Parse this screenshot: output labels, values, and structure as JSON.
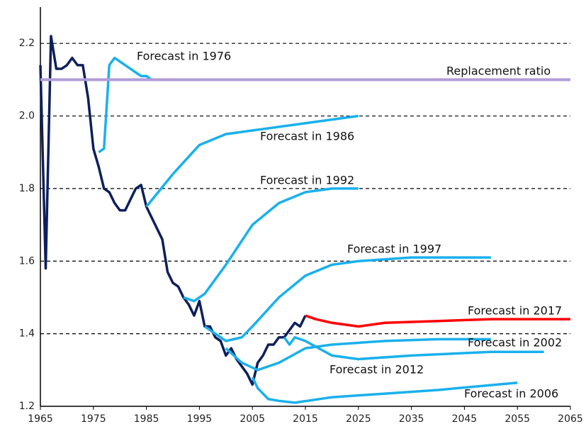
{
  "chart_data": {
    "type": "line",
    "xlim": [
      1965,
      2065
    ],
    "xticks": [
      1965,
      1975,
      1985,
      1995,
      2005,
      2015,
      2025,
      2035,
      2045,
      2055,
      2065
    ],
    "ylim": [
      1.2,
      2.3
    ],
    "yticks": [
      1.2,
      1.4,
      1.6,
      1.8,
      {
        "value": 2,
        "label": "2.0"
      },
      2.2
    ],
    "grid": true,
    "series": [
      {
        "color": "#0e1f5b",
        "x": [
          1965,
          1966,
          1967,
          1968,
          1969,
          1970,
          1971,
          1972,
          1973,
          1974,
          1975,
          1976,
          1977,
          1978,
          1979,
          1980,
          1981,
          1982,
          1983,
          1984,
          1985,
          1986,
          1987,
          1988,
          1989,
          1990,
          1991,
          1992,
          1993,
          1994,
          1995,
          1996,
          1997,
          1998,
          1999,
          2000,
          2001,
          2002,
          2003,
          2004,
          2005,
          2006,
          2007,
          2008,
          2009,
          2010,
          2011,
          2012,
          2013,
          2014,
          2015
        ],
        "values": [
          2.14,
          1.58,
          2.22,
          2.13,
          2.13,
          2.14,
          2.16,
          2.14,
          2.14,
          2.05,
          1.91,
          1.86,
          1.8,
          1.79,
          1.76,
          1.74,
          1.74,
          1.77,
          1.8,
          1.81,
          1.75,
          1.72,
          1.69,
          1.66,
          1.57,
          1.54,
          1.53,
          1.5,
          1.48,
          1.45,
          1.49,
          1.42,
          1.42,
          1.39,
          1.38,
          1.34,
          1.36,
          1.33,
          1.31,
          1.29,
          1.26,
          1.32,
          1.34,
          1.37,
          1.37,
          1.39,
          1.39,
          1.41,
          1.43,
          1.42,
          1.45
        ]
      },
      {
        "name": "Forecast in 1976",
        "color": "#1ab0ec",
        "x": [
          1976,
          1977,
          1978,
          1979,
          1980,
          1981,
          1982,
          1983,
          1984,
          1985,
          1986,
          1987
        ],
        "values": [
          1.9,
          1.91,
          2.14,
          2.16,
          2.15,
          2.14,
          2.13,
          2.12,
          2.11,
          2.11,
          2.1,
          2.1
        ]
      },
      {
        "color": "#4472c4",
        "x": [
          1987,
          1995
        ],
        "values": [
          2.1,
          2.1
        ]
      },
      {
        "name": "Replacement ratio",
        "color": "#b19cd9",
        "x": [
          1965,
          2065
        ],
        "values": [
          2.1,
          2.1
        ]
      },
      {
        "name": "Forecast in 1986",
        "color": "#1ab0ec",
        "x": [
          1985,
          1990,
          1995,
          2000,
          2005,
          2010,
          2015,
          2020,
          2025
        ],
        "values": [
          1.75,
          1.84,
          1.92,
          1.95,
          1.96,
          1.97,
          1.98,
          1.99,
          2.0
        ]
      },
      {
        "name": "Forecast in 1992",
        "color": "#1ab0ec",
        "x": [
          1992,
          1994,
          1996,
          2000,
          2005,
          2010,
          2015,
          2020,
          2025
        ],
        "values": [
          1.5,
          1.49,
          1.51,
          1.59,
          1.7,
          1.76,
          1.79,
          1.8,
          1.8
        ]
      },
      {
        "name": "Forecast in 1997",
        "color": "#1ab0ec",
        "x": [
          1996,
          2000,
          2003,
          2005,
          2010,
          2015,
          2020,
          2025,
          2035,
          2050
        ],
        "values": [
          1.42,
          1.38,
          1.39,
          1.42,
          1.5,
          1.56,
          1.59,
          1.6,
          1.61,
          1.61
        ]
      },
      {
        "name": "Forecast in 2002",
        "color": "#1ab0ec",
        "x": [
          2000,
          2003,
          2006,
          2010,
          2015,
          2020,
          2030,
          2040,
          2050
        ],
        "values": [
          1.36,
          1.32,
          1.3,
          1.32,
          1.36,
          1.37,
          1.38,
          1.385,
          1.385
        ]
      },
      {
        "name": "Forecast in 2006",
        "color": "#1ab0ec",
        "x": [
          2005,
          2006,
          2008,
          2010,
          2013,
          2020,
          2030,
          2040,
          2055
        ],
        "values": [
          1.28,
          1.25,
          1.22,
          1.215,
          1.21,
          1.225,
          1.235,
          1.245,
          1.265
        ]
      },
      {
        "name": "Forecast in 2012",
        "color": "#1ab0ec",
        "x": [
          2011,
          2012,
          2013,
          2015,
          2020,
          2025,
          2035,
          2050,
          2060
        ],
        "values": [
          1.39,
          1.37,
          1.39,
          1.38,
          1.34,
          1.33,
          1.34,
          1.35,
          1.35
        ]
      },
      {
        "name": "Forecast in 2017",
        "color": "#ff0000",
        "x": [
          2015,
          2017,
          2020,
          2025,
          2030,
          2040,
          2050,
          2065
        ],
        "values": [
          1.45,
          1.44,
          1.43,
          1.42,
          1.43,
          1.435,
          1.44,
          1.44
        ]
      }
    ]
  }
}
